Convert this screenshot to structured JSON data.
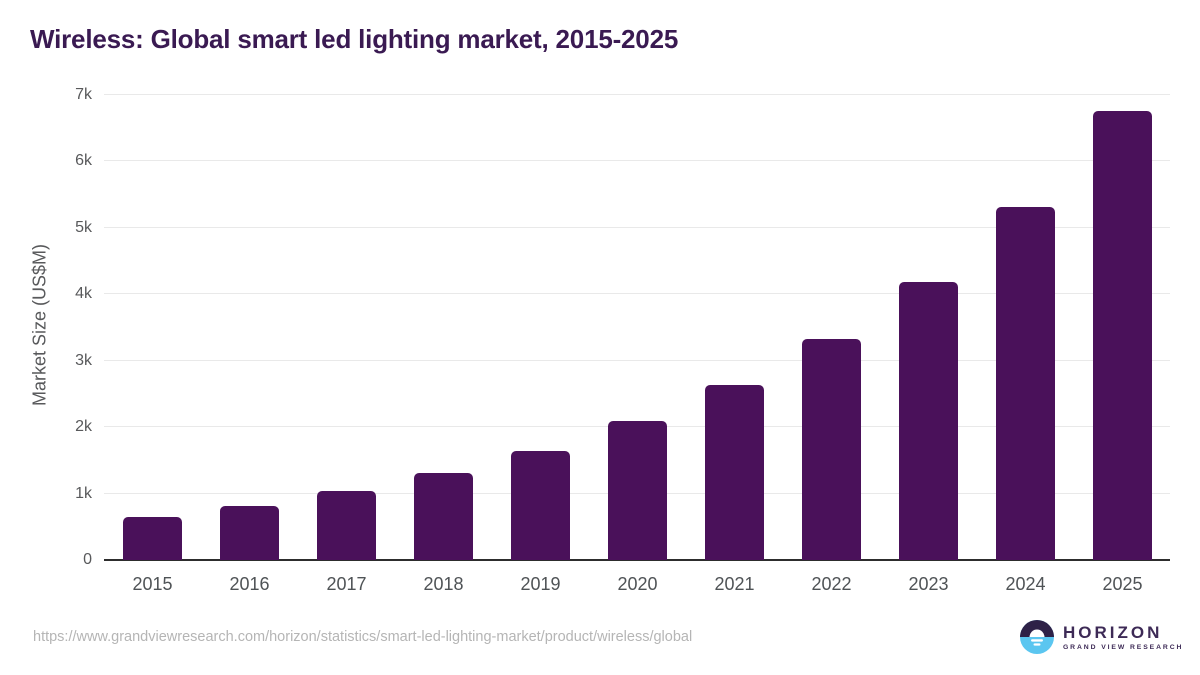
{
  "title": "Wireless: Global smart led lighting market, 2015-2025",
  "chart_data": {
    "type": "bar",
    "title": "Wireless: Global smart led lighting market, 2015-2025",
    "categories": [
      "2015",
      "2016",
      "2017",
      "2018",
      "2019",
      "2020",
      "2021",
      "2022",
      "2023",
      "2024",
      "2025"
    ],
    "values": [
      650,
      820,
      1040,
      1310,
      1640,
      2090,
      2630,
      3320,
      4190,
      5320,
      6760
    ],
    "xlabel": "",
    "ylabel": "Market Size (US$M)",
    "ylim": [
      0,
      7000
    ],
    "yticks": [
      "0",
      "1k",
      "2k",
      "3k",
      "4k",
      "5k",
      "6k",
      "7k"
    ],
    "grid": true,
    "legend": "none",
    "bar_color": "#4a115a"
  },
  "footer": {
    "source_url": "https://www.grandviewresearch.com/horizon/statistics/smart-led-lighting-market/product/wireless/global",
    "logo_name": "HORIZON",
    "logo_subtitle": "GRAND VIEW RESEARCH"
  },
  "colors": {
    "bar": "#4a115a",
    "title_text": "#3a1a52",
    "axis_text": "#58595b",
    "gridline": "#e9e9e9",
    "axis_line": "#2d2d2d",
    "url_text": "#b5b5b5",
    "logo_dark": "#2e2147",
    "logo_blue": "#5bc6f0"
  }
}
